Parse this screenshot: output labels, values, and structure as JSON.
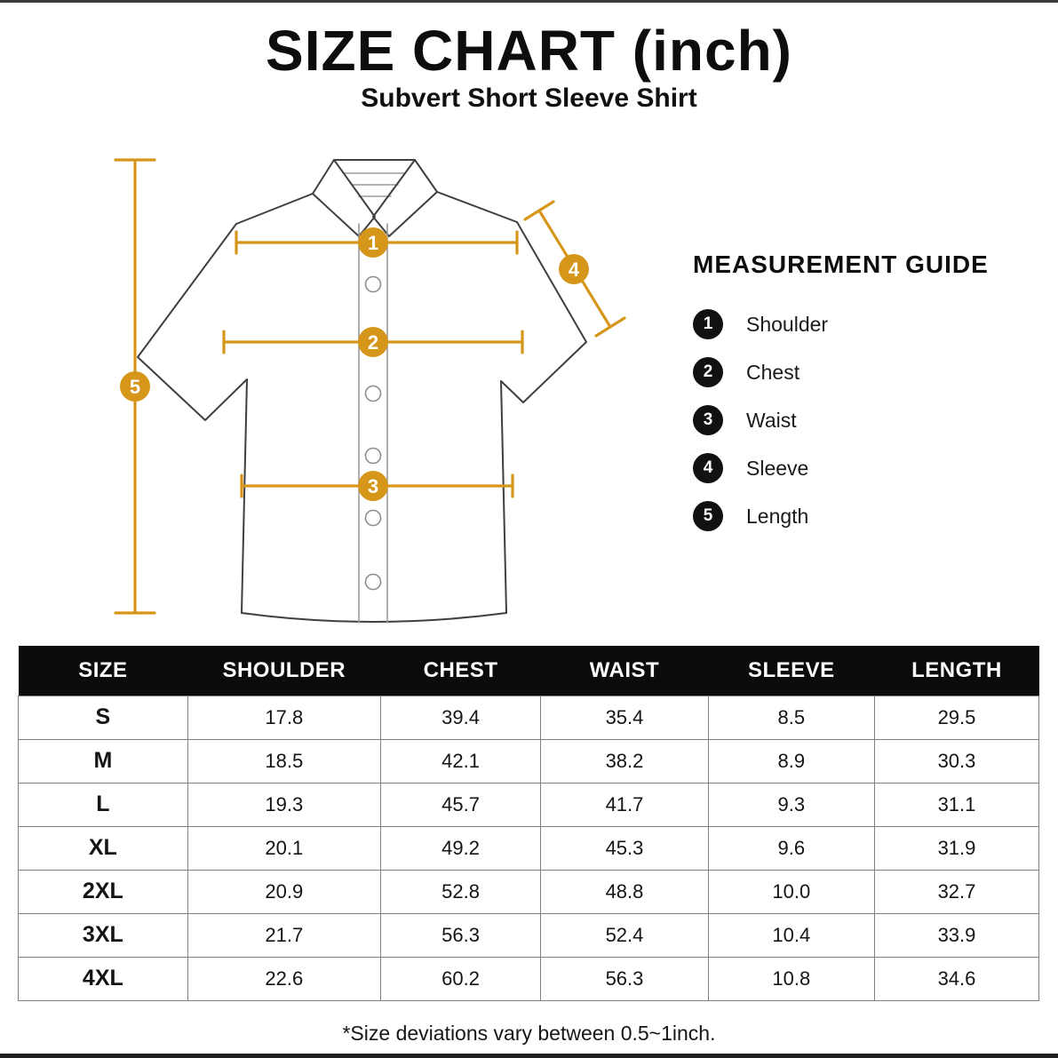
{
  "page": {
    "title": "SIZE CHART (inch)",
    "subtitle": "Subvert Short Sleeve Shirt",
    "footnote": "*Size deviations vary between 0.5~1inch."
  },
  "measurement_guide": {
    "title": "MEASUREMENT GUIDE",
    "items": [
      {
        "num": "1",
        "label": "Shoulder"
      },
      {
        "num": "2",
        "label": "Chest"
      },
      {
        "num": "3",
        "label": "Waist"
      },
      {
        "num": "4",
        "label": "Sleeve"
      },
      {
        "num": "5",
        "label": "Length"
      }
    ]
  },
  "diagram": {
    "markers": [
      "1",
      "2",
      "3",
      "4",
      "5"
    ]
  },
  "size_table": {
    "columns": [
      "SIZE",
      "SHOULDER",
      "CHEST",
      "WAIST",
      "SLEEVE",
      "LENGTH"
    ],
    "rows": [
      [
        "S",
        "17.8",
        "39.4",
        "35.4",
        "8.5",
        "29.5"
      ],
      [
        "M",
        "18.5",
        "42.1",
        "38.2",
        "8.9",
        "30.3"
      ],
      [
        "L",
        "19.3",
        "45.7",
        "41.7",
        "9.3",
        "31.1"
      ],
      [
        "XL",
        "20.1",
        "49.2",
        "45.3",
        "9.6",
        "31.9"
      ],
      [
        "2XL",
        "20.9",
        "52.8",
        "48.8",
        "10.0",
        "32.7"
      ],
      [
        "3XL",
        "21.7",
        "56.3",
        "52.4",
        "10.4",
        "33.9"
      ],
      [
        "4XL",
        "22.6",
        "60.2",
        "56.3",
        "10.8",
        "34.6"
      ]
    ]
  },
  "colors": {
    "accent": "#D6961A",
    "legend_marker": "#111111",
    "table_header_bg": "#0B0B0B",
    "table_border": "#7F7F7F"
  }
}
